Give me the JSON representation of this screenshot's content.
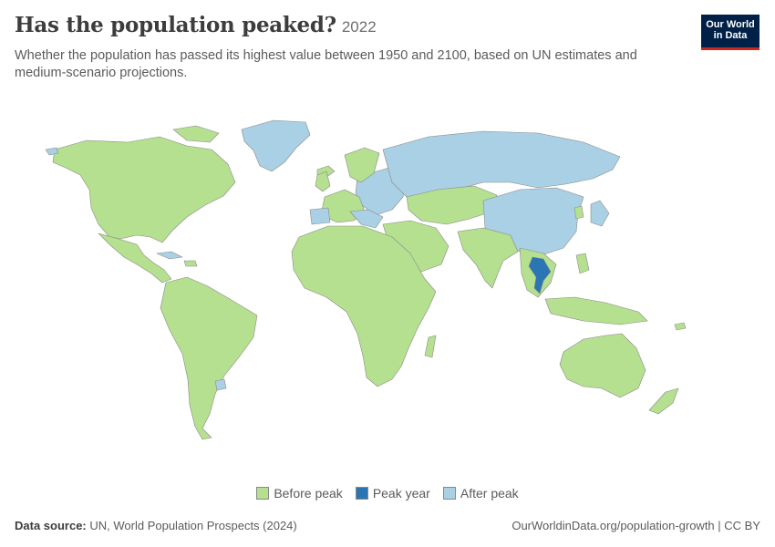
{
  "header": {
    "title": "Has the population peaked?",
    "year": "2022",
    "subtitle": "Whether the population has passed its highest value between 1950 and 2100, based on UN estimates and medium-scenario projections."
  },
  "logo": {
    "line1": "Our World",
    "line2": "in Data"
  },
  "colors": {
    "before_peak": "#b5e08f",
    "peak_year": "#2a75b3",
    "after_peak": "#a9d0e4",
    "border": "#8a8a8a"
  },
  "legend": [
    {
      "label": "Before peak",
      "key": "before_peak"
    },
    {
      "label": "Peak year",
      "key": "peak_year"
    },
    {
      "label": "After peak",
      "key": "after_peak"
    }
  ],
  "footer": {
    "source_label": "Data source:",
    "source_text": "UN, World Population Prospects (2024)",
    "url": "OurWorldinData.org/population-growth | CC BY"
  }
}
